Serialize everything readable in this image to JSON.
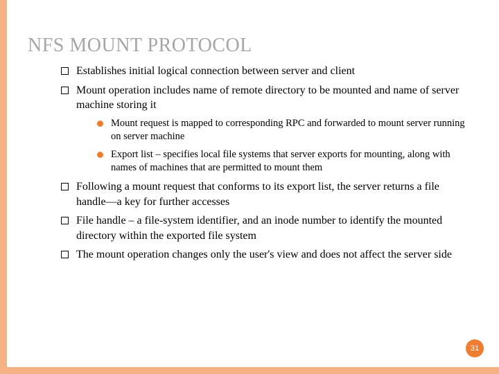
{
  "title": "NFS MOUNT PROTOCOL",
  "bullets": {
    "b1": "Establishes initial logical connection between server and client",
    "b2": "Mount operation includes name of remote directory to be mounted and name of server machine storing it",
    "b2_sub1": "Mount request is mapped to corresponding RPC and forwarded to mount server running on server machine",
    "b2_sub2": "Export list – specifies local file systems that server exports for mounting, along with names of machines that are permitted to mount them",
    "b3": "Following a mount request that conforms to its export list, the server returns a file handle—a key for further accesses",
    "b4": "File handle – a file-system identifier, and an inode number to identify the mounted directory within the exported file system",
    "b5": "The mount operation changes only the user's view and does not affect the server side"
  },
  "page_number": "31",
  "colors": {
    "accent": "#ed7d31",
    "border": "#f4b183",
    "title": "#a6a6a6",
    "text": "#000000",
    "background": "#ffffff"
  }
}
